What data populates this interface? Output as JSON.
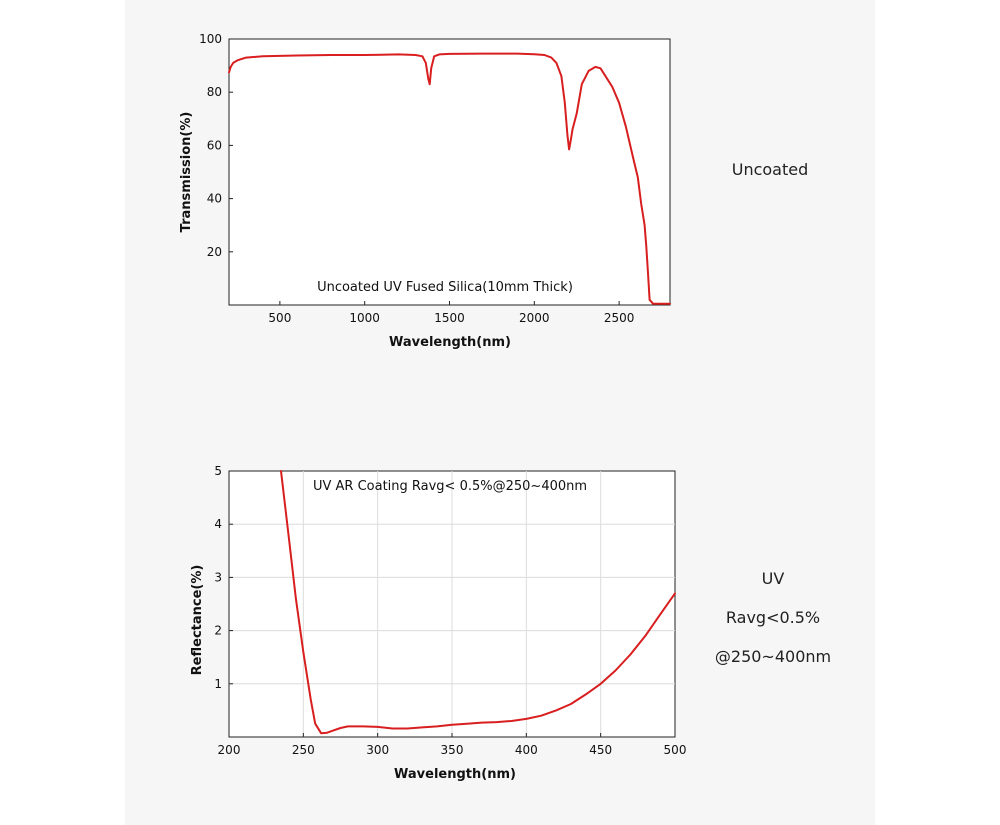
{
  "chart_data": [
    {
      "type": "line",
      "xlabel": "Wavelength(nm)",
      "ylabel": "Transmission(%)",
      "annotation": "Uncoated UV Fused Silica(10mm Thick)",
      "xlim": [
        200,
        2800
      ],
      "ylim": [
        0,
        100
      ],
      "xticks": [
        500,
        1000,
        1500,
        2000,
        2500
      ],
      "yticks": [
        20,
        40,
        60,
        80,
        100
      ],
      "grid": false,
      "series": [
        {
          "color": "#d81e1e",
          "x": [
            200,
            210,
            225,
            250,
            300,
            400,
            600,
            800,
            1000,
            1200,
            1300,
            1340,
            1360,
            1375,
            1383,
            1392,
            1410,
            1440,
            1500,
            1700,
            1900,
            2000,
            2060,
            2100,
            2130,
            2160,
            2180,
            2195,
            2205,
            2215,
            2225,
            2250,
            2280,
            2320,
            2360,
            2390,
            2420,
            2460,
            2500,
            2540,
            2580,
            2610,
            2630,
            2650,
            2660,
            2670,
            2680,
            2700,
            2750,
            2800
          ],
          "y": [
            87.5,
            89.5,
            91,
            92,
            93,
            93.5,
            93.8,
            94,
            94,
            94.2,
            94,
            93.5,
            91,
            85,
            83,
            89,
            93.5,
            94.2,
            94.4,
            94.5,
            94.5,
            94.3,
            94,
            93,
            91,
            86,
            76,
            64,
            58.5,
            62,
            66,
            72,
            83,
            88,
            89.5,
            89,
            86,
            82,
            76,
            67,
            56,
            48,
            38,
            30,
            22,
            12,
            2,
            0.5,
            0.5,
            0.5
          ]
        }
      ]
    },
    {
      "type": "line",
      "xlabel": "Wavelength(nm)",
      "ylabel": "Reflectance(%)",
      "annotation": "UV AR Coating Ravg< 0.5%@250~400nm",
      "xlim": [
        200,
        500
      ],
      "ylim": [
        0,
        5
      ],
      "xticks": [
        200,
        250,
        300,
        350,
        400,
        450,
        500
      ],
      "yticks": [
        1,
        2,
        3,
        4,
        5
      ],
      "grid": true,
      "series": [
        {
          "color": "#d81e1e",
          "x": [
            235,
            240,
            245,
            250,
            255,
            258,
            262,
            266,
            270,
            275,
            280,
            290,
            300,
            310,
            320,
            330,
            340,
            350,
            360,
            370,
            380,
            390,
            400,
            410,
            420,
            430,
            440,
            450,
            460,
            470,
            480,
            490,
            500
          ],
          "y": [
            5.0,
            3.8,
            2.6,
            1.6,
            0.7,
            0.25,
            0.07,
            0.08,
            0.12,
            0.17,
            0.2,
            0.2,
            0.19,
            0.16,
            0.16,
            0.18,
            0.2,
            0.23,
            0.25,
            0.27,
            0.28,
            0.3,
            0.34,
            0.4,
            0.5,
            0.62,
            0.8,
            1.0,
            1.25,
            1.55,
            1.9,
            2.3,
            2.7
          ]
        }
      ]
    }
  ],
  "side_labels": {
    "top": "Uncoated",
    "bottom_line1": "UV",
    "bottom_line2": "Ravg<0.5%",
    "bottom_line3": "@250~400nm"
  }
}
